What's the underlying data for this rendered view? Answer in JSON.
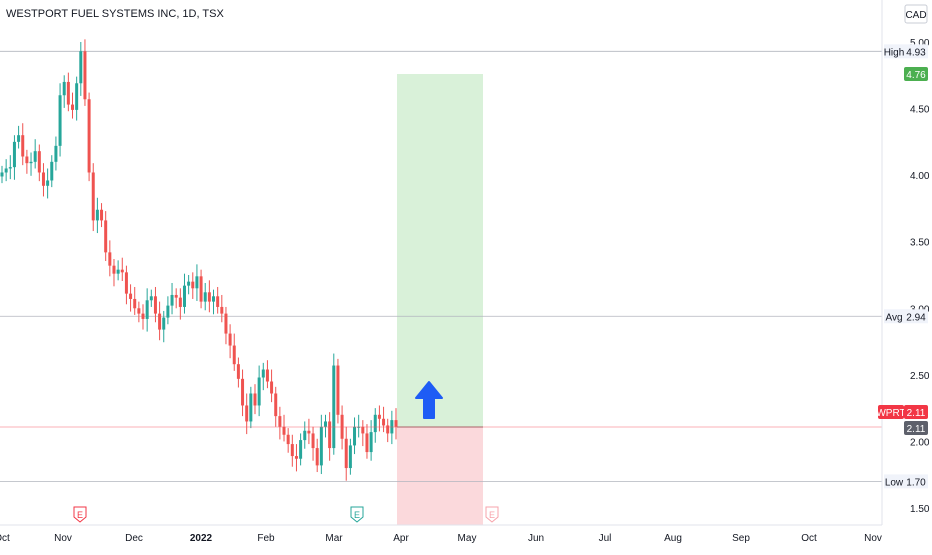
{
  "chart_data": {
    "type": "candlestick",
    "title": "WESTPORT FUEL SYSTEMS INC, 1D, TSX",
    "currency": "CAD",
    "symbol": "WPRT",
    "y_ticks": [
      5.0,
      4.5,
      4.0,
      3.5,
      3.0,
      2.5,
      2.0,
      1.5
    ],
    "ylim": [
      1.42,
      5.07
    ],
    "x_ticks": [
      "Oct",
      "Nov",
      "Dec",
      "2022",
      "Feb",
      "Mar",
      "Apr",
      "May",
      "Jun",
      "Jul",
      "Aug",
      "Sep",
      "Oct",
      "Nov"
    ],
    "reference_lines": [
      {
        "label": "High",
        "value": "4.93"
      },
      {
        "label": "Avg",
        "value": "2.94"
      },
      {
        "label": "Low",
        "value": "1.70"
      }
    ],
    "target_price": "4.76",
    "last_price": "2.11",
    "last_price_repeat": "2.11",
    "earnings_marker": "E",
    "position": {
      "type": "long",
      "entry": 2.11,
      "target": 4.76,
      "stop": 1.42
    },
    "close_series": [
      4.02,
      4.05,
      4.06,
      4.25,
      4.3,
      4.14,
      4.09,
      4.1,
      4.18,
      4.02,
      3.92,
      3.96,
      4.1,
      4.22,
      4.6,
      4.7,
      4.53,
      4.49,
      4.69,
      4.93,
      4.57,
      4.02,
      3.66,
      3.74,
      3.66,
      3.42,
      3.32,
      3.26,
      3.29,
      3.27,
      3.11,
      3.07,
      3.0,
      2.96,
      2.92,
      3.06,
      3.09,
      2.96,
      2.84,
      2.93,
      3.02,
      3.1,
      3.08,
      3.01,
      3.17,
      3.2,
      3.15,
      3.24,
      3.05,
      3.12,
      3.05,
      3.09,
      3.01,
      2.96,
      2.81,
      2.72,
      2.58,
      2.47,
      2.27,
      2.15,
      2.36,
      2.27,
      2.48,
      2.54,
      2.45,
      2.36,
      2.19,
      2.11,
      2.05,
      1.98,
      1.89,
      1.87,
      2.01,
      2.08,
      2.06,
      1.95,
      1.82,
      2.11,
      2.15,
      1.95,
      2.57,
      2.2,
      2.02,
      1.8,
      1.97,
      2.11,
      2.11,
      2.06,
      1.92,
      2.07,
      2.2,
      2.17,
      2.12,
      2.06,
      2.16,
      2.11
    ]
  },
  "ui": {
    "title": "WESTPORT FUEL SYSTEMS INC, 1D, TSX",
    "currency": "CAD"
  }
}
